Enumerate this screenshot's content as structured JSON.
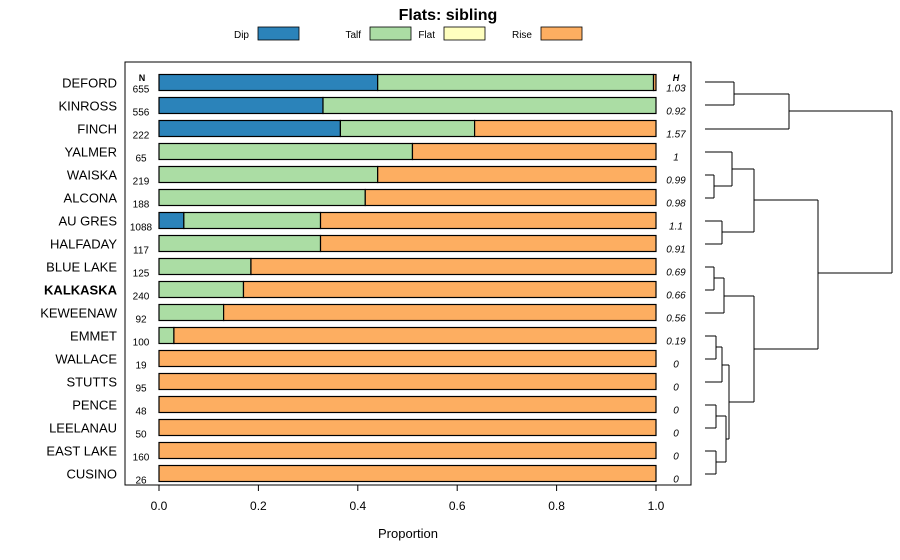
{
  "chart_data": {
    "type": "bar",
    "orientation": "horizontal",
    "stacked": true,
    "title": "Flats: sibling",
    "xlabel": "Proportion",
    "ylabel": "",
    "xlim": [
      0,
      1
    ],
    "xticks": [
      "0.0",
      "0.2",
      "0.4",
      "0.6",
      "0.8",
      "1.0"
    ],
    "n_header": "N",
    "h_header": "H",
    "legend_position": "top",
    "legend": [
      {
        "name": "Dip",
        "color": "#2b83ba"
      },
      {
        "name": "Talf",
        "color": "#abdda4"
      },
      {
        "name": "Flat",
        "color": "#ffffbf"
      },
      {
        "name": "Rise",
        "color": "#fdae61"
      }
    ],
    "highlight": "KALKASKA",
    "rows": [
      {
        "label": "DEFORD",
        "n": "655",
        "h": "1.03",
        "values": [
          0.44,
          0.555,
          0,
          0.005
        ]
      },
      {
        "label": "KINROSS",
        "n": "556",
        "h": "0.92",
        "values": [
          0.33,
          0.67,
          0,
          0
        ]
      },
      {
        "label": "FINCH",
        "n": "222",
        "h": "1.57",
        "values": [
          0.365,
          0.27,
          0,
          0.365
        ]
      },
      {
        "label": "YALMER",
        "n": "65",
        "h": "1",
        "values": [
          0,
          0.51,
          0,
          0.49
        ]
      },
      {
        "label": "WAISKA",
        "n": "219",
        "h": "0.99",
        "values": [
          0,
          0.44,
          0,
          0.56
        ]
      },
      {
        "label": "ALCONA",
        "n": "188",
        "h": "0.98",
        "values": [
          0,
          0.415,
          0,
          0.585
        ]
      },
      {
        "label": "AU GRES",
        "n": "1088",
        "h": "1.1",
        "values": [
          0.05,
          0.275,
          0,
          0.675
        ]
      },
      {
        "label": "HALFADAY",
        "n": "117",
        "h": "0.91",
        "values": [
          0,
          0.325,
          0,
          0.675
        ]
      },
      {
        "label": "BLUE LAKE",
        "n": "125",
        "h": "0.69",
        "values": [
          0,
          0.185,
          0,
          0.815
        ]
      },
      {
        "label": "KALKASKA",
        "n": "240",
        "h": "0.66",
        "values": [
          0,
          0.17,
          0,
          0.83
        ]
      },
      {
        "label": "KEWEENAW",
        "n": "92",
        "h": "0.56",
        "values": [
          0,
          0.13,
          0,
          0.87
        ]
      },
      {
        "label": "EMMET",
        "n": "100",
        "h": "0.19",
        "values": [
          0,
          0.03,
          0,
          0.97
        ]
      },
      {
        "label": "WALLACE",
        "n": "19",
        "h": "0",
        "values": [
          0,
          0,
          0,
          1
        ]
      },
      {
        "label": "STUTTS",
        "n": "95",
        "h": "0",
        "values": [
          0,
          0,
          0,
          1
        ]
      },
      {
        "label": "PENCE",
        "n": "48",
        "h": "0",
        "values": [
          0,
          0,
          0,
          1
        ]
      },
      {
        "label": "LEELANAU",
        "n": "50",
        "h": "0",
        "values": [
          0,
          0,
          0,
          1
        ]
      },
      {
        "label": "EAST LAKE",
        "n": "160",
        "h": "0",
        "values": [
          0,
          0,
          0,
          1
        ]
      },
      {
        "label": "CUSINO",
        "n": "26",
        "h": "0",
        "values": [
          0,
          0,
          0,
          1
        ]
      }
    ]
  }
}
